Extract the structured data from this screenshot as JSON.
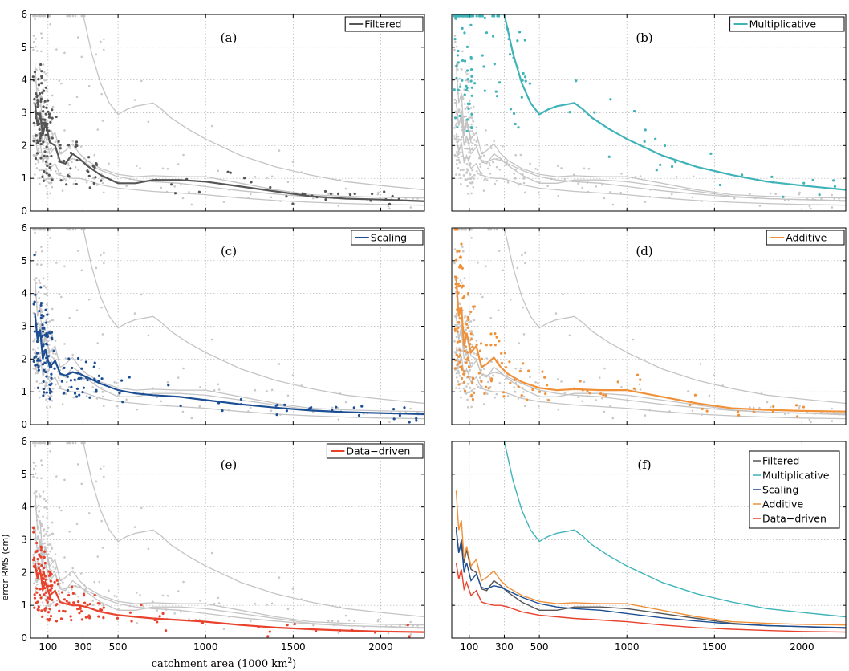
{
  "figure": {
    "xlabel_main": "catchment area (1000 km",
    "xlabel_sup": "2",
    "xlabel_close": ")",
    "ylabel": "error RMS (cm)"
  },
  "colors": {
    "background_points": "#c8c8c8",
    "background_curves": "#c4c4c4",
    "grid": "#b0b0b0"
  },
  "chart_data": [
    {
      "type": "scatter",
      "panel": "(a)",
      "legend": "Filtered",
      "color": "#555555",
      "xticks": [
        100,
        300,
        500,
        1000,
        1500,
        2000
      ],
      "yticks": [
        0,
        1,
        2,
        3,
        4,
        5,
        6
      ],
      "xlim": [
        0,
        2250
      ],
      "ylim": [
        0,
        6
      ],
      "grid": true,
      "legend_position": "top-right",
      "curve": [
        [
          25,
          3.3
        ],
        [
          40,
          2.6
        ],
        [
          55,
          3.0
        ],
        [
          70,
          2.3
        ],
        [
          85,
          2.7
        ],
        [
          110,
          2.1
        ],
        [
          140,
          2.0
        ],
        [
          170,
          1.5
        ],
        [
          200,
          1.45
        ],
        [
          240,
          1.75
        ],
        [
          280,
          1.6
        ],
        [
          320,
          1.4
        ],
        [
          400,
          1.1
        ],
        [
          500,
          0.85
        ],
        [
          600,
          0.85
        ],
        [
          700,
          0.95
        ],
        [
          850,
          0.95
        ],
        [
          1000,
          0.9
        ],
        [
          1200,
          0.75
        ],
        [
          1400,
          0.6
        ],
        [
          1600,
          0.45
        ],
        [
          1800,
          0.38
        ],
        [
          2000,
          0.35
        ],
        [
          2250,
          0.3
        ]
      ]
    },
    {
      "type": "scatter",
      "panel": "(b)",
      "legend": "Multiplicative",
      "color": "#3fb3b8",
      "xticks": [
        100,
        300,
        500,
        1000,
        1500,
        2000
      ],
      "yticks": [
        0,
        1,
        2,
        3,
        4,
        5,
        6
      ],
      "xlim": [
        0,
        2250
      ],
      "ylim": [
        0,
        6
      ],
      "grid": true,
      "legend_position": "top-right",
      "curve": [
        [
          300,
          6.0
        ],
        [
          350,
          4.8
        ],
        [
          400,
          3.9
        ],
        [
          450,
          3.3
        ],
        [
          500,
          2.95
        ],
        [
          550,
          3.1
        ],
        [
          600,
          3.2
        ],
        [
          650,
          3.25
        ],
        [
          700,
          3.3
        ],
        [
          750,
          3.1
        ],
        [
          800,
          2.85
        ],
        [
          900,
          2.5
        ],
        [
          1000,
          2.2
        ],
        [
          1200,
          1.7
        ],
        [
          1400,
          1.35
        ],
        [
          1600,
          1.1
        ],
        [
          1800,
          0.9
        ],
        [
          2000,
          0.78
        ],
        [
          2250,
          0.65
        ]
      ]
    },
    {
      "type": "scatter",
      "panel": "(c)",
      "legend": "Scaling",
      "color": "#1c4e94",
      "xticks": [
        100,
        300,
        500,
        1000,
        1500,
        2000
      ],
      "yticks": [
        0,
        1,
        2,
        3,
        4,
        5,
        6
      ],
      "xlim": [
        0,
        2250
      ],
      "ylim": [
        0,
        6
      ],
      "grid": true,
      "legend_position": "top-right",
      "curve": [
        [
          25,
          3.4
        ],
        [
          40,
          2.6
        ],
        [
          55,
          2.9
        ],
        [
          70,
          2.0
        ],
        [
          85,
          2.3
        ],
        [
          110,
          1.75
        ],
        [
          140,
          1.95
        ],
        [
          170,
          1.55
        ],
        [
          200,
          1.5
        ],
        [
          240,
          1.6
        ],
        [
          280,
          1.55
        ],
        [
          320,
          1.45
        ],
        [
          400,
          1.25
        ],
        [
          500,
          1.05
        ],
        [
          600,
          0.95
        ],
        [
          700,
          0.9
        ],
        [
          850,
          0.85
        ],
        [
          1000,
          0.75
        ],
        [
          1200,
          0.62
        ],
        [
          1400,
          0.52
        ],
        [
          1600,
          0.43
        ],
        [
          1800,
          0.38
        ],
        [
          2000,
          0.35
        ],
        [
          2250,
          0.32
        ]
      ]
    },
    {
      "type": "scatter",
      "panel": "(d)",
      "legend": "Additive",
      "color": "#f0913a",
      "xticks": [
        100,
        300,
        500,
        1000,
        1500,
        2000
      ],
      "yticks": [
        0,
        1,
        2,
        3,
        4,
        5,
        6
      ],
      "xlim": [
        0,
        2250
      ],
      "ylim": [
        0,
        6
      ],
      "grid": true,
      "legend_position": "top-right",
      "curve": [
        [
          25,
          4.5
        ],
        [
          40,
          3.3
        ],
        [
          55,
          3.6
        ],
        [
          70,
          2.4
        ],
        [
          85,
          2.8
        ],
        [
          110,
          2.2
        ],
        [
          140,
          2.4
        ],
        [
          170,
          1.75
        ],
        [
          200,
          1.85
        ],
        [
          240,
          2.05
        ],
        [
          280,
          1.75
        ],
        [
          320,
          1.55
        ],
        [
          400,
          1.3
        ],
        [
          500,
          1.12
        ],
        [
          600,
          1.05
        ],
        [
          700,
          1.08
        ],
        [
          850,
          1.05
        ],
        [
          1000,
          1.05
        ],
        [
          1200,
          0.85
        ],
        [
          1400,
          0.65
        ],
        [
          1600,
          0.5
        ],
        [
          1800,
          0.45
        ],
        [
          2000,
          0.42
        ],
        [
          2250,
          0.4
        ]
      ]
    },
    {
      "type": "scatter",
      "panel": "(e)",
      "legend": "Data−driven",
      "color": "#e8412c",
      "xticks": [
        100,
        300,
        500,
        1000,
        1500,
        2000
      ],
      "yticks": [
        0,
        1,
        2,
        3,
        4,
        5,
        6
      ],
      "xlim": [
        0,
        2250
      ],
      "ylim": [
        0,
        6
      ],
      "grid": true,
      "legend_position": "top-right",
      "curve": [
        [
          25,
          2.3
        ],
        [
          40,
          1.8
        ],
        [
          55,
          2.1
        ],
        [
          70,
          1.5
        ],
        [
          85,
          1.7
        ],
        [
          110,
          1.3
        ],
        [
          140,
          1.45
        ],
        [
          170,
          1.1
        ],
        [
          200,
          1.05
        ],
        [
          240,
          1.0
        ],
        [
          280,
          1.0
        ],
        [
          320,
          0.95
        ],
        [
          400,
          0.8
        ],
        [
          500,
          0.7
        ],
        [
          600,
          0.65
        ],
        [
          700,
          0.6
        ],
        [
          850,
          0.55
        ],
        [
          1000,
          0.5
        ],
        [
          1200,
          0.4
        ],
        [
          1400,
          0.32
        ],
        [
          1600,
          0.27
        ],
        [
          1800,
          0.23
        ],
        [
          2000,
          0.2
        ],
        [
          2250,
          0.18
        ]
      ]
    },
    {
      "type": "line",
      "panel": "(f)",
      "xticks": [
        100,
        300,
        500,
        1000,
        1500,
        2000
      ],
      "yticks": [
        0,
        1,
        2,
        3,
        4,
        5,
        6
      ],
      "xlim": [
        0,
        2250
      ],
      "ylim": [
        0,
        6
      ],
      "grid": true,
      "legend_position": "top-right",
      "series": [
        {
          "name": "Filtered",
          "color": "#555555",
          "ref": 0
        },
        {
          "name": "Multiplicative",
          "color": "#3fb3b8",
          "ref": 1
        },
        {
          "name": "Scaling",
          "color": "#1c4e94",
          "ref": 2
        },
        {
          "name": "Additive",
          "color": "#f0913a",
          "ref": 3
        },
        {
          "name": "Data−driven",
          "color": "#e8412c",
          "ref": 4
        }
      ]
    }
  ]
}
